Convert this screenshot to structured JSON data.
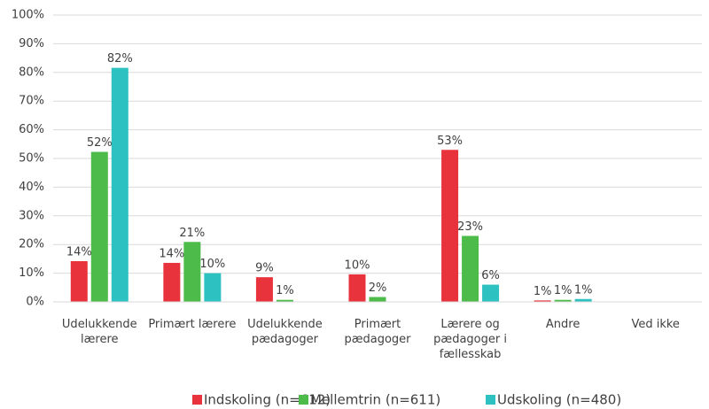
{
  "chart_data": {
    "type": "bar",
    "categories": [
      "Udelukkende lærere",
      "Primært lærere",
      "Udelukkende pædagoger",
      "Primært pædagoger",
      "Lærere og pædagoger i fællesskab",
      "Andre",
      "Ved ikke"
    ],
    "series": [
      {
        "name": "Indskoling (n=612)",
        "color": "#e8323c",
        "values": [
          14.2,
          13.6,
          8.6,
          9.6,
          53,
          0.5,
          0
        ],
        "value_labels": [
          "14%",
          "14%",
          "9%",
          "10%",
          "53%",
          "1%",
          null
        ]
      },
      {
        "name": "Mellemtrin (n=611)",
        "color": "#4cbb4a",
        "values": [
          52.3,
          20.9,
          0.7,
          1.7,
          23,
          0.7,
          0
        ],
        "value_labels": [
          "52%",
          "21%",
          "1%",
          "2%",
          "23%",
          "1%",
          null
        ]
      },
      {
        "name": "Udskoling (n=480)",
        "color": "#2ec1c1",
        "values": [
          81.6,
          10,
          0,
          0,
          6,
          1,
          0
        ],
        "value_labels": [
          "82%",
          "10%",
          null,
          null,
          "6%",
          "1%",
          null
        ]
      }
    ],
    "ylim": [
      0,
      100
    ],
    "yticks": [
      {
        "value": 0,
        "label": "0%"
      },
      {
        "value": 10,
        "label": "10%"
      },
      {
        "value": 20,
        "label": "20%"
      },
      {
        "value": 30,
        "label": "30%"
      },
      {
        "value": 40,
        "label": "40%"
      },
      {
        "value": 50,
        "label": "50%"
      },
      {
        "value": 60,
        "label": "60%"
      },
      {
        "value": 70,
        "label": "70%"
      },
      {
        "value": 80,
        "label": "80%"
      },
      {
        "value": 90,
        "label": "90%"
      },
      {
        "value": 100,
        "label": "100%"
      }
    ],
    "grid": true,
    "legend": "bottom"
  }
}
